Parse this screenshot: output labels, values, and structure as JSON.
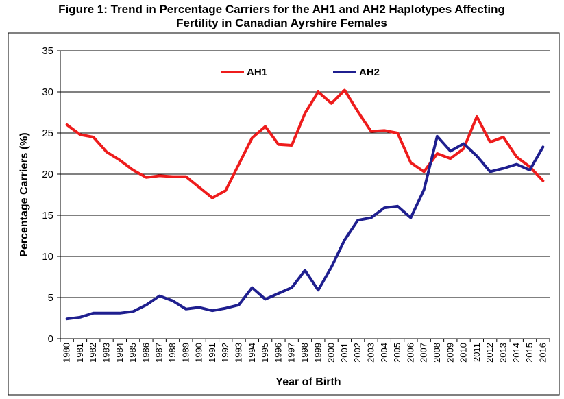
{
  "chart_data": {
    "type": "line",
    "title": "Figure 1: Trend in Percentage Carriers for the AH1 and AH2 Haplotypes Affecting Fertility in Canadian Ayrshire Females",
    "title_lines": [
      "Figure 1: Trend in Percentage Carriers for the AH1 and AH2 Haplotypes Affecting",
      "Fertility in Canadian Ayrshire Females"
    ],
    "xlabel": "Year of Birth",
    "ylabel": "Percentage Carriers (%)",
    "ylim": [
      0,
      35
    ],
    "yticks": [
      "0",
      "5",
      "10",
      "15",
      "20",
      "25",
      "30",
      "35"
    ],
    "yticks_values": [
      0,
      5,
      10,
      15,
      20,
      25,
      30,
      35
    ],
    "grid": true,
    "legend_placement": "top-center",
    "x": [
      "1980",
      "1981",
      "1982",
      "1983",
      "1984",
      "1985",
      "1986",
      "1987",
      "1988",
      "1989",
      "1990",
      "1991",
      "1992",
      "1993",
      "1994",
      "1995",
      "1996",
      "1997",
      "1998",
      "1999",
      "2000",
      "2001",
      "2002",
      "2003",
      "2004",
      "2005",
      "2006",
      "2007",
      "2008",
      "2009",
      "2010",
      "2011",
      "2012",
      "2013",
      "2014",
      "2015",
      "2016"
    ],
    "series": [
      {
        "name": "AH1",
        "color": "#ee1c1c",
        "values": [
          26.0,
          24.8,
          24.5,
          22.7,
          21.7,
          20.5,
          19.6,
          19.8,
          19.7,
          19.7,
          18.4,
          17.1,
          18.0,
          21.2,
          24.4,
          25.8,
          23.6,
          23.5,
          27.4,
          30.0,
          28.6,
          30.2,
          27.6,
          25.2,
          25.3,
          25.0,
          21.4,
          20.3,
          22.5,
          21.9,
          23.1,
          27.0,
          23.9,
          24.5,
          22.1,
          20.9,
          19.2
        ]
      },
      {
        "name": "AH2",
        "color": "#1f1f8f",
        "values": [
          2.4,
          2.6,
          3.1,
          3.1,
          3.1,
          3.3,
          4.1,
          5.2,
          4.6,
          3.6,
          3.8,
          3.4,
          3.7,
          4.1,
          6.2,
          4.8,
          5.5,
          6.2,
          8.3,
          5.9,
          8.7,
          12.0,
          14.4,
          14.7,
          15.9,
          16.1,
          14.7,
          18.1,
          24.6,
          22.8,
          23.7,
          22.2,
          20.3,
          20.7,
          21.2,
          20.5,
          23.3
        ]
      }
    ]
  }
}
